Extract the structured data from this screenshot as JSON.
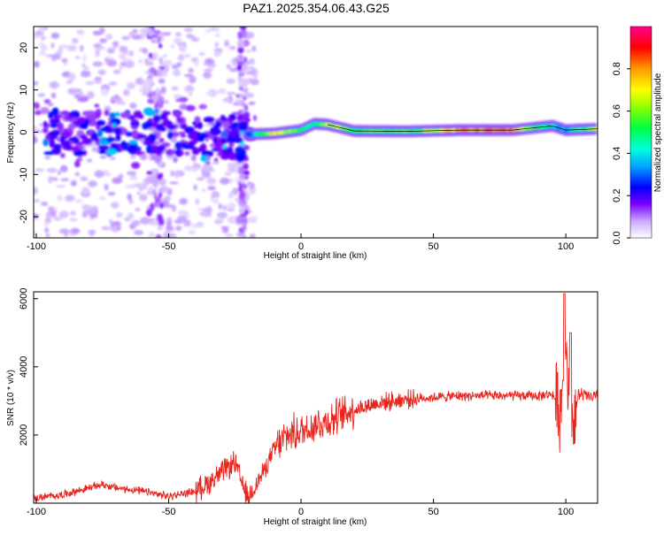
{
  "title": "PAZ1.2025.354.06.43.G25",
  "chart_data": [
    {
      "type": "heatmap",
      "xlabel": "Height of straight line (km)",
      "ylabel": "Frequency (Hz)",
      "xlim": [
        -101,
        112
      ],
      "ylim": [
        -25,
        25
      ],
      "xticks": [
        -100,
        -50,
        0,
        50,
        100
      ],
      "yticks": [
        -20,
        -10,
        0,
        10,
        20
      ],
      "colorbar": {
        "label": "Normalized spectral amplitude",
        "range": [
          0,
          1
        ],
        "ticks": [
          0.0,
          0.2,
          0.4,
          0.6,
          0.8
        ],
        "tick_labels": [
          "0.0",
          "0.2",
          "0.4",
          "0.6",
          "0.8"
        ]
      },
      "ridge": {
        "description_points_x": [
          -20,
          -10,
          0,
          5,
          10,
          20,
          40,
          60,
          80,
          95,
          100,
          112
        ],
        "frequency_hz": [
          -0.5,
          -0.3,
          0.5,
          2.0,
          1.8,
          0.3,
          0.2,
          0.5,
          0.5,
          1.5,
          0.5,
          0.8
        ],
        "amplitude": [
          0.25,
          0.75,
          0.5,
          0.45,
          0.7,
          0.55,
          0.55,
          0.8,
          0.8,
          0.4,
          0.35,
          0.7
        ]
      }
    },
    {
      "type": "line",
      "xlabel": "Height of straight line (km)",
      "ylabel": "SNR (10 * v/v)",
      "xlim": [
        -101,
        112
      ],
      "ylim": [
        0,
        6200
      ],
      "xticks": [
        -100,
        -50,
        0,
        50,
        100
      ],
      "yticks": [
        2000,
        4000,
        6000
      ],
      "series": [
        {
          "name": "SNR",
          "color": "#e8241e",
          "x": [
            -100,
            -90,
            -80,
            -75,
            -70,
            -60,
            -50,
            -40,
            -35,
            -30,
            -25,
            -22,
            -20,
            -15,
            -10,
            -5,
            0,
            5,
            10,
            20,
            30,
            40,
            50,
            60,
            70,
            80,
            90,
            95,
            98,
            100,
            102,
            105,
            110,
            112
          ],
          "y": [
            150,
            250,
            450,
            550,
            450,
            350,
            200,
            350,
            600,
            900,
            1200,
            500,
            150,
            800,
            1600,
            2000,
            2100,
            2300,
            2400,
            2750,
            2950,
            3050,
            3100,
            3150,
            3150,
            3150,
            3150,
            3200,
            2700,
            4800,
            2200,
            3200,
            3100,
            3150
          ]
        }
      ]
    }
  ]
}
